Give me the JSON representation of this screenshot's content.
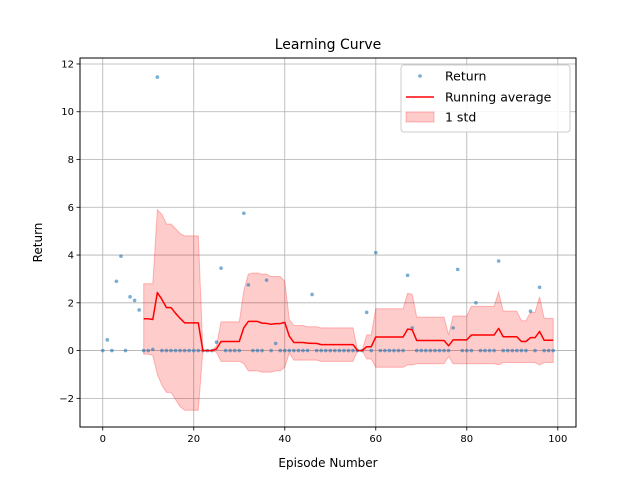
{
  "chart_data": {
    "type": "line",
    "title": "Learning Curve",
    "xlabel": "Episode Number",
    "ylabel": "Return",
    "xlim": [
      -5,
      104
    ],
    "ylim": [
      -3.2,
      12.25
    ],
    "xticks": [
      0,
      20,
      40,
      60,
      80,
      100
    ],
    "yticks": [
      -2,
      0,
      2,
      4,
      6,
      8,
      10,
      12
    ],
    "grid": true,
    "legend_position": "upper right",
    "colors": {
      "points": "#1f77b4",
      "running_average": "#ff0000",
      "std_band": "#ff0000"
    },
    "series": [
      {
        "name": "Return",
        "kind": "scatter",
        "x": [
          0,
          1,
          2,
          3,
          4,
          5,
          6,
          7,
          8,
          9,
          10,
          11,
          12,
          13,
          14,
          15,
          16,
          17,
          18,
          19,
          20,
          21,
          22,
          23,
          24,
          25,
          26,
          27,
          28,
          29,
          30,
          31,
          32,
          33,
          34,
          35,
          36,
          37,
          38,
          39,
          40,
          41,
          42,
          43,
          44,
          45,
          46,
          47,
          48,
          49,
          50,
          51,
          52,
          53,
          54,
          55,
          56,
          57,
          58,
          59,
          60,
          61,
          62,
          63,
          64,
          65,
          66,
          67,
          68,
          69,
          70,
          71,
          72,
          73,
          74,
          75,
          76,
          77,
          78,
          79,
          80,
          81,
          82,
          83,
          84,
          85,
          86,
          87,
          88,
          89,
          90,
          91,
          92,
          93,
          94,
          95,
          96,
          97,
          98,
          99
        ],
        "y": [
          0,
          0.45,
          0,
          2.9,
          3.95,
          0,
          2.25,
          2.1,
          1.7,
          0,
          0,
          0.05,
          11.45,
          0,
          0,
          0,
          0,
          0,
          0,
          0,
          0,
          0,
          0,
          0,
          0,
          0.35,
          3.45,
          0,
          0,
          0,
          0,
          5.75,
          2.75,
          0,
          0,
          0,
          2.95,
          0,
          0.3,
          0,
          0,
          0,
          0,
          0,
          0,
          0,
          2.35,
          0,
          0,
          0,
          0,
          0,
          0,
          0,
          0,
          0,
          0,
          0,
          1.6,
          0,
          4.1,
          0,
          0,
          0,
          0,
          0,
          0,
          3.15,
          0.95,
          0,
          0,
          0,
          0,
          0,
          0,
          0,
          0,
          0.95,
          3.4,
          0,
          0,
          0,
          2.0,
          0,
          0,
          0,
          0,
          3.75,
          0,
          0,
          0,
          0,
          0,
          0,
          1.65,
          0,
          2.65,
          0,
          0,
          0
        ]
      },
      {
        "name": "Running average",
        "kind": "line",
        "x": [
          9,
          10,
          11,
          12,
          13,
          14,
          15,
          16,
          17,
          18,
          19,
          20,
          21,
          22,
          23,
          24,
          25,
          26,
          27,
          28,
          29,
          30,
          31,
          32,
          33,
          34,
          35,
          36,
          37,
          38,
          39,
          40,
          41,
          42,
          43,
          44,
          45,
          46,
          47,
          48,
          49,
          50,
          51,
          52,
          53,
          54,
          55,
          56,
          57,
          58,
          59,
          60,
          61,
          62,
          63,
          64,
          65,
          66,
          67,
          68,
          69,
          70,
          71,
          72,
          73,
          74,
          75,
          76,
          77,
          78,
          79,
          80,
          81,
          82,
          83,
          84,
          85,
          86,
          87,
          88,
          89,
          90,
          91,
          92,
          93,
          94,
          95,
          96,
          97,
          98,
          99
        ],
        "y": [
          1.33,
          1.33,
          1.3,
          2.43,
          2.14,
          1.8,
          1.8,
          1.56,
          1.35,
          1.16,
          1.16,
          1.16,
          1.16,
          0.0,
          0.0,
          0.0,
          0.07,
          0.38,
          0.38,
          0.38,
          0.38,
          0.38,
          0.96,
          1.22,
          1.22,
          1.22,
          1.15,
          1.14,
          1.1,
          1.13,
          1.13,
          1.18,
          0.6,
          0.34,
          0.34,
          0.34,
          0.31,
          0.3,
          0.3,
          0.25,
          0.25,
          0.25,
          0.25,
          0.25,
          0.25,
          0.25,
          0.25,
          0.0,
          0.0,
          0.16,
          0.16,
          0.57,
          0.57,
          0.57,
          0.57,
          0.57,
          0.57,
          0.57,
          0.9,
          0.87,
          0.42,
          0.42,
          0.42,
          0.42,
          0.42,
          0.42,
          0.42,
          0.2,
          0.45,
          0.45,
          0.45,
          0.45,
          0.65,
          0.65,
          0.65,
          0.65,
          0.65,
          0.65,
          0.93,
          0.58,
          0.58,
          0.58,
          0.58,
          0.38,
          0.38,
          0.54,
          0.54,
          0.8,
          0.43,
          0.43,
          0.43
        ]
      },
      {
        "name": "1 std",
        "kind": "band",
        "x": [
          9,
          10,
          11,
          12,
          13,
          14,
          15,
          16,
          17,
          18,
          19,
          20,
          21,
          22,
          23,
          24,
          25,
          26,
          27,
          28,
          29,
          30,
          31,
          32,
          33,
          34,
          35,
          36,
          37,
          38,
          39,
          40,
          41,
          42,
          43,
          44,
          45,
          46,
          47,
          48,
          49,
          50,
          51,
          52,
          53,
          54,
          55,
          56,
          57,
          58,
          59,
          60,
          61,
          62,
          63,
          64,
          65,
          66,
          67,
          68,
          69,
          70,
          71,
          72,
          73,
          74,
          75,
          76,
          77,
          78,
          79,
          80,
          81,
          82,
          83,
          84,
          85,
          86,
          87,
          88,
          89,
          90,
          91,
          92,
          93,
          94,
          95,
          96,
          97,
          98,
          99
        ],
        "upper": [
          2.8,
          2.8,
          2.8,
          5.9,
          5.7,
          5.3,
          5.3,
          5.1,
          4.9,
          4.8,
          4.8,
          4.8,
          4.8,
          0.0,
          0.0,
          0.0,
          0.2,
          1.2,
          1.2,
          1.2,
          1.2,
          1.2,
          2.5,
          3.2,
          3.25,
          3.25,
          3.2,
          3.2,
          3.1,
          3.1,
          3.1,
          2.9,
          1.3,
          1.05,
          1.05,
          1.05,
          1.0,
          1.0,
          1.0,
          0.95,
          0.95,
          0.95,
          0.95,
          0.95,
          0.95,
          0.95,
          0.95,
          0.0,
          0.0,
          0.65,
          0.65,
          1.75,
          1.75,
          1.75,
          1.75,
          1.75,
          1.75,
          1.75,
          2.4,
          2.35,
          1.4,
          1.4,
          1.4,
          1.4,
          1.4,
          1.4,
          1.4,
          0.65,
          1.45,
          1.45,
          1.45,
          1.45,
          1.85,
          1.85,
          1.85,
          1.85,
          1.85,
          1.85,
          2.45,
          1.65,
          1.65,
          1.65,
          1.65,
          1.25,
          1.25,
          1.6,
          1.6,
          2.25,
          1.35,
          1.35,
          1.35
        ],
        "lower": [
          -0.15,
          -0.15,
          -0.2,
          -1.0,
          -1.45,
          -1.75,
          -1.75,
          -2.05,
          -2.35,
          -2.5,
          -2.5,
          -2.5,
          -2.5,
          0.0,
          0.0,
          0.0,
          -0.07,
          -0.45,
          -0.45,
          -0.45,
          -0.45,
          -0.45,
          -0.55,
          -0.85,
          -0.85,
          -0.85,
          -0.9,
          -0.9,
          -0.9,
          -0.85,
          -0.85,
          -0.7,
          -0.1,
          -0.4,
          -0.4,
          -0.4,
          -0.4,
          -0.4,
          -0.4,
          -0.45,
          -0.45,
          -0.45,
          -0.45,
          -0.45,
          -0.45,
          -0.45,
          -0.45,
          0.0,
          0.0,
          -0.35,
          -0.35,
          -0.7,
          -0.7,
          -0.7,
          -0.7,
          -0.7,
          -0.7,
          -0.7,
          -0.6,
          -0.6,
          -0.55,
          -0.55,
          -0.55,
          -0.55,
          -0.55,
          -0.55,
          -0.55,
          -0.25,
          -0.55,
          -0.55,
          -0.55,
          -0.55,
          -0.55,
          -0.55,
          -0.55,
          -0.55,
          -0.55,
          -0.55,
          -0.6,
          -0.5,
          -0.5,
          -0.5,
          -0.5,
          -0.5,
          -0.5,
          -0.5,
          -0.5,
          -0.6,
          -0.5,
          -0.5,
          -0.5
        ]
      }
    ],
    "legend": [
      "Return",
      "Running average",
      "1 std"
    ]
  }
}
